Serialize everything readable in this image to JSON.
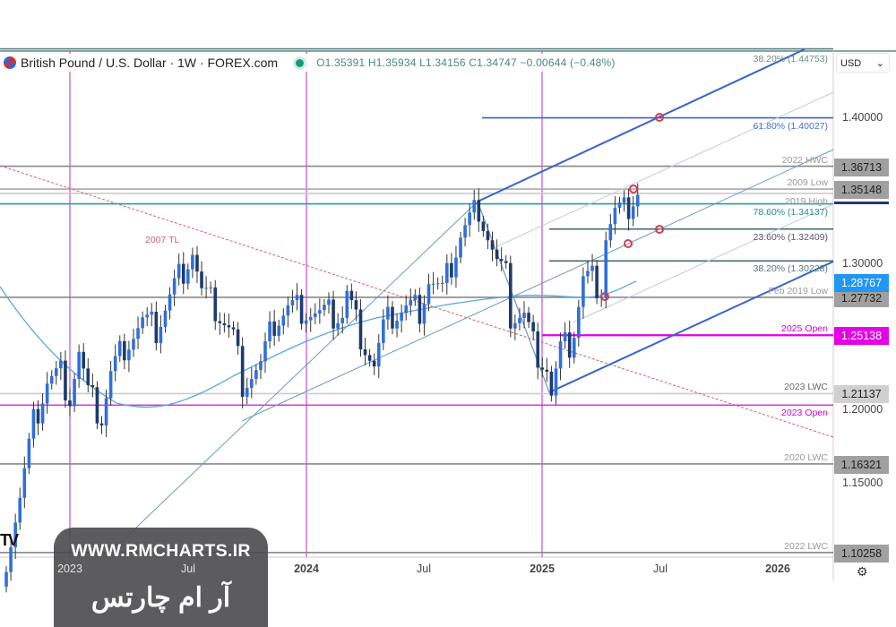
{
  "header": {
    "symbol": "British Pound / U.S. Dollar · 1W · FOREX.com",
    "ohlc": "O1.35391 H1.35934 L1.34156 C1.34747 −0.00644 (−0.48%)"
  },
  "currency": {
    "label": "USD",
    "chevron": "⌄"
  },
  "colors": {
    "up": "#2f6fdb",
    "down": "#1e3a6e",
    "magenta": "#e600e6",
    "fib": "#4a7fc1",
    "teal": "#2a9aa8",
    "grey": "#8a8a8a",
    "ma": "#5aa7de",
    "tl": "#d06070"
  },
  "price_ticks": [
    "1.40000",
    "1.30000",
    "1.20000",
    "1.15000"
  ],
  "time_ticks": [
    "2023",
    "Jul",
    "2024",
    "Jul",
    "2025",
    "Jul",
    "2026"
  ],
  "levels": [
    {
      "label": "38.20% (1.44753)",
      "price": 1.44753,
      "color": "#6b8f80",
      "line": "#5a7f80",
      "from": "left"
    },
    {
      "label": "61.80% (1.40027)",
      "price": 1.40027,
      "color": "#4a6fc1",
      "line": "#3a64b8",
      "from": "fib"
    },
    {
      "label": "2022 HWC",
      "price": 1.36713,
      "color": "#999",
      "line": "#888",
      "from": "left",
      "tag": "1.36713"
    },
    {
      "label": "2009 Low",
      "price": 1.35148,
      "color": "#999",
      "line": "#aaa",
      "from": "left",
      "tag": "1.35148"
    },
    {
      "label": "2019 High",
      "price": 1.3485,
      "color": "#999",
      "line": "#ccc",
      "from": "left"
    },
    {
      "label": "78.60% (1.34137)",
      "price": 1.34137,
      "color": "#2a8a98",
      "line": "#2a9aa8",
      "from": "left"
    },
    {
      "label": "23.60% (1.32409)",
      "price": 1.32409,
      "color": "#557",
      "line": "#4a6a6a",
      "from": "fib2"
    },
    {
      "label": "38.20% (1.30228)",
      "price": 1.30228,
      "color": "#577",
      "line": "#4a6a6a",
      "from": "fib2"
    },
    {
      "label": "Feb 2019 Low",
      "price": 1.27732,
      "color": "#999",
      "line": "#888",
      "from": "left",
      "tag": "1.27732"
    },
    {
      "label": "2025 Open",
      "price": 1.25138,
      "color": "#d000d0",
      "line": "#e600e6",
      "from": "y2025",
      "tag": "1.25138"
    },
    {
      "label": "2023 LWC",
      "price": 1.21137,
      "color": "#666",
      "line": "#ccc",
      "from": "left",
      "tag": "1.21137"
    },
    {
      "label": "2023 Open",
      "price": 1.2035,
      "color": "#d000d0",
      "line": "#d040d0",
      "from": "left"
    },
    {
      "label": "2020 LWC",
      "price": 1.16321,
      "color": "#999",
      "line": "#888",
      "from": "left",
      "tag": "1.16321"
    },
    {
      "label": "2022 LWC",
      "price": 1.10258,
      "color": "#999",
      "line": "#888",
      "from": "left",
      "tag": "1.10258"
    }
  ],
  "ma_tag": "1.28767",
  "tl_label": "2007 TL",
  "chart_data": {
    "type": "candlestick",
    "title": "British Pound / U.S. Dollar · 1W · FOREX.com",
    "ylim": [
      1.09,
      1.46
    ],
    "x_unit": "weeks since 2023 start",
    "close_keypoints": [
      [
        -14,
        1.1
      ],
      [
        -11,
        1.14
      ],
      [
        -8,
        1.19
      ],
      [
        -5,
        1.22
      ],
      [
        -2,
        1.225
      ],
      [
        0,
        1.21
      ],
      [
        2,
        1.24
      ],
      [
        4,
        1.21
      ],
      [
        7,
        1.195
      ],
      [
        9,
        1.225
      ],
      [
        12,
        1.245
      ],
      [
        16,
        1.26
      ],
      [
        19,
        1.255
      ],
      [
        23,
        1.285
      ],
      [
        27,
        1.31
      ],
      [
        29,
        1.28
      ],
      [
        32,
        1.27
      ],
      [
        36,
        1.25
      ],
      [
        38,
        1.22
      ],
      [
        42,
        1.23
      ],
      [
        45,
        1.26
      ],
      [
        48,
        1.27
      ],
      [
        51,
        1.27
      ],
      [
        55,
        1.265
      ],
      [
        60,
        1.265
      ],
      [
        61,
        1.28
      ],
      [
        63,
        1.26
      ],
      [
        65,
        1.245
      ],
      [
        67,
        1.23
      ],
      [
        69,
        1.255
      ],
      [
        71,
        1.265
      ],
      [
        74,
        1.27
      ],
      [
        77,
        1.27
      ],
      [
        79,
        1.29
      ],
      [
        82,
        1.28
      ],
      [
        84,
        1.3
      ],
      [
        86,
        1.32
      ],
      [
        88,
        1.33
      ],
      [
        90,
        1.34
      ],
      [
        92,
        1.32
      ],
      [
        94,
        1.3
      ],
      [
        96,
        1.29
      ],
      [
        97,
        1.265
      ],
      [
        100,
        1.265
      ],
      [
        102,
        1.245
      ],
      [
        105,
        1.23
      ],
      [
        106,
        1.21
      ],
      [
        108,
        1.24
      ],
      [
        110,
        1.245
      ],
      [
        111,
        1.255
      ],
      [
        113,
        1.29
      ],
      [
        115,
        1.29
      ],
      [
        117,
        1.285
      ],
      [
        118,
        1.32
      ],
      [
        120,
        1.335
      ],
      [
        122,
        1.335
      ],
      [
        124,
        1.345
      ],
      [
        125,
        1.3475
      ]
    ]
  }
}
